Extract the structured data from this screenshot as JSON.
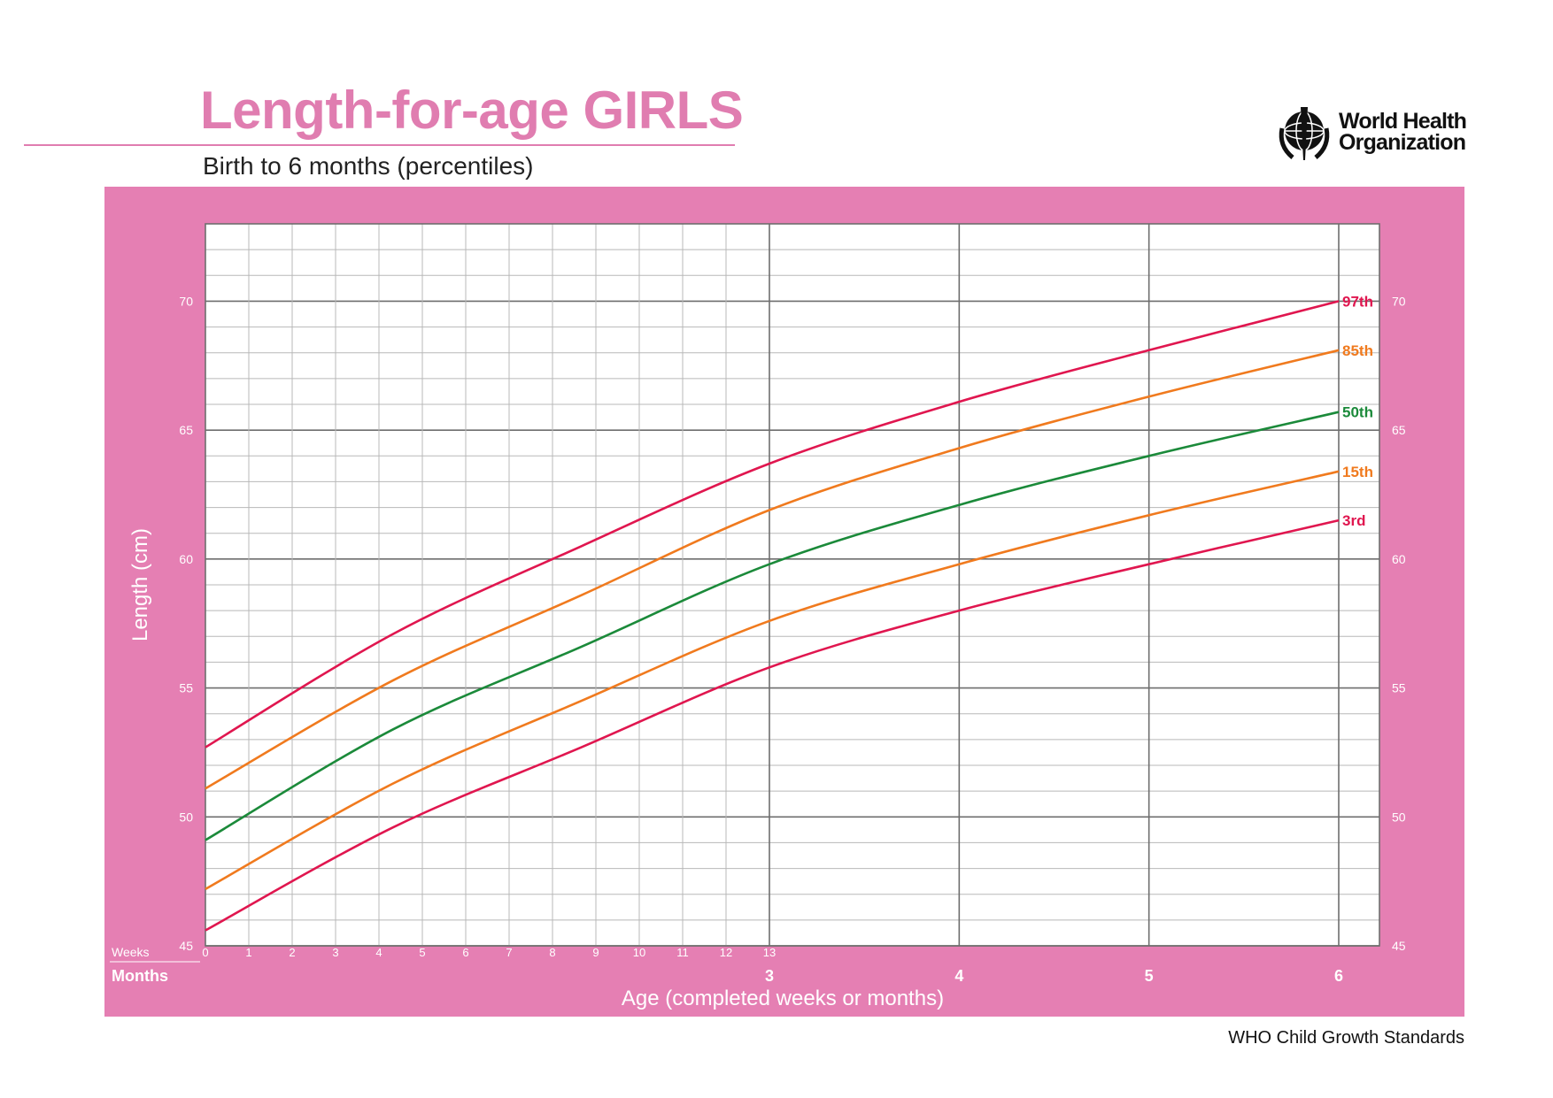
{
  "header": {
    "title": "Length-for-age GIRLS",
    "subtitle": "Birth to 6 months (percentiles)"
  },
  "logo": {
    "line1": "World Health",
    "line2": "Organization",
    "icon": "who-emblem-icon"
  },
  "footer": {
    "text": "WHO Child Growth Standards"
  },
  "colors": {
    "title": "#e07db0",
    "panel": "#e57fb3",
    "p3_p97": "#e0164f",
    "p15_p85": "#f07a1e",
    "p50": "#1b8a3a",
    "grid_major": "#6e6e6e",
    "grid_minor": "#b8b8b8"
  },
  "chart_data": {
    "type": "line",
    "title": "Length-for-age GIRLS",
    "subtitle": "Birth to 6 months (percentiles)",
    "xlabel": "Age (completed weeks or months)",
    "ylabel": "Length (cm)",
    "ylim": [
      45,
      73
    ],
    "yticks": [
      45,
      50,
      55,
      60,
      65,
      70
    ],
    "y_axis_both_sides": true,
    "grid": true,
    "weeks_row_label": "Weeks",
    "months_row_label": "Months",
    "week_ticks": [
      "0",
      "1",
      "2",
      "3",
      "4",
      "5",
      "6",
      "7",
      "8",
      "9",
      "10",
      "11",
      "12",
      "13"
    ],
    "month_ticks": [
      "3",
      "4",
      "5",
      "6"
    ],
    "x_axis_note": "x values in months of age",
    "series": [
      {
        "name": "97th",
        "color": "#e0164f",
        "x": [
          0,
          1,
          2,
          3,
          4,
          5,
          6
        ],
        "values": [
          52.7,
          57.1,
          60.5,
          63.7,
          66.1,
          68.1,
          70.0
        ]
      },
      {
        "name": "85th",
        "color": "#f07a1e",
        "x": [
          0,
          1,
          2,
          3,
          4,
          5,
          6
        ],
        "values": [
          51.1,
          55.3,
          58.6,
          61.9,
          64.3,
          66.3,
          68.1
        ]
      },
      {
        "name": "50th",
        "color": "#1b8a3a",
        "x": [
          0,
          1,
          2,
          3,
          4,
          5,
          6
        ],
        "values": [
          49.1,
          53.4,
          56.6,
          59.8,
          62.1,
          64.0,
          65.7
        ]
      },
      {
        "name": "15th",
        "color": "#f07a1e",
        "x": [
          0,
          1,
          2,
          3,
          4,
          5,
          6
        ],
        "values": [
          47.2,
          51.3,
          54.5,
          57.6,
          59.8,
          61.7,
          63.4
        ]
      },
      {
        "name": "3rd",
        "color": "#e0164f",
        "x": [
          0,
          1,
          2,
          3,
          4,
          5,
          6
        ],
        "values": [
          45.6,
          49.6,
          52.7,
          55.8,
          58.0,
          59.8,
          61.5
        ]
      }
    ]
  }
}
